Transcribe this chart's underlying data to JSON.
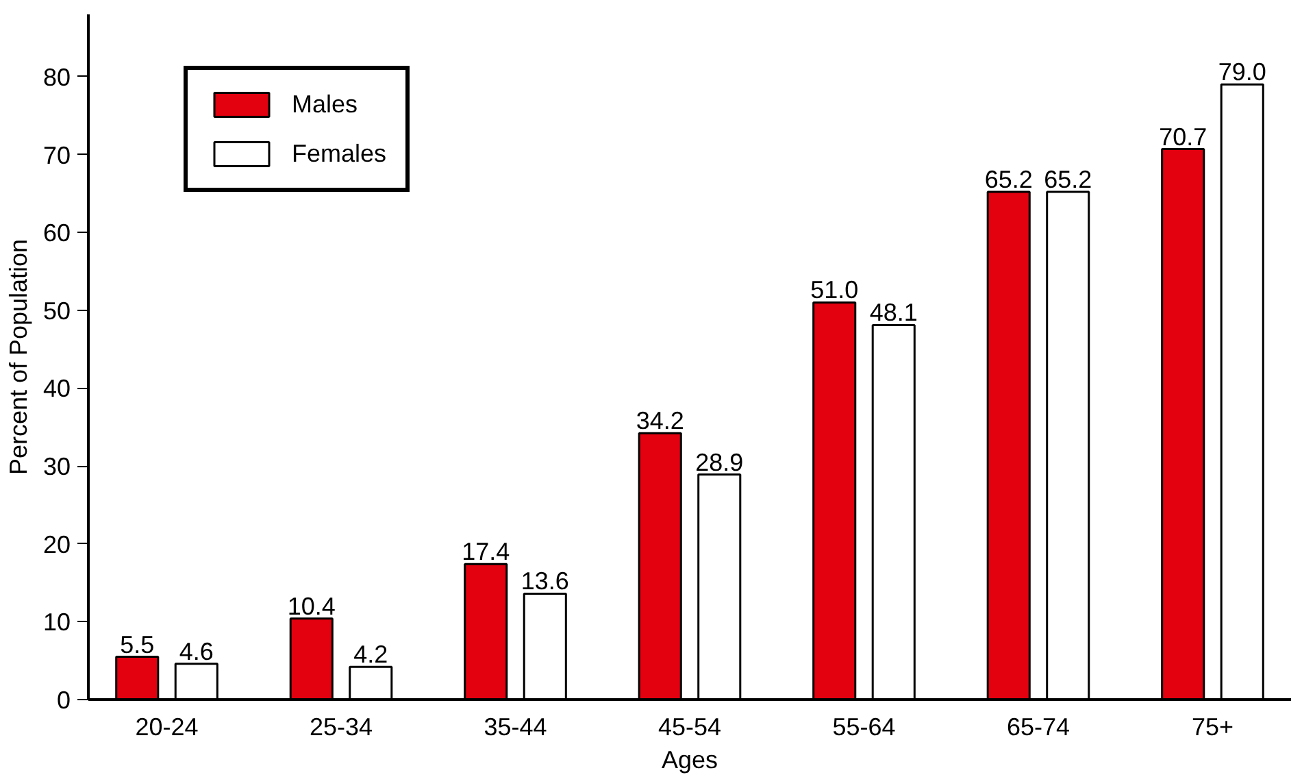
{
  "chart_data": {
    "type": "bar",
    "xlabel": "Ages",
    "ylabel": "Percent of Population",
    "categories": [
      "20-24",
      "25-34",
      "35-44",
      "45-54",
      "55-64",
      "65-74",
      "75+"
    ],
    "series": [
      {
        "name": "Males",
        "color": "#e3000f",
        "values": [
          5.5,
          10.4,
          17.4,
          34.2,
          51.0,
          65.2,
          70.7
        ],
        "value_labels": [
          "5.5",
          "10.4",
          "17.4",
          "34.2",
          "51.0",
          "65.2",
          "70.7"
        ]
      },
      {
        "name": "Females",
        "color": "#ffffff",
        "values": [
          4.6,
          4.2,
          13.6,
          28.9,
          48.1,
          65.2,
          79.0
        ],
        "value_labels": [
          "4.6",
          "4.2",
          "13.6",
          "28.9",
          "48.1",
          "65.2",
          "79.0"
        ]
      }
    ],
    "ylim": [
      0,
      88
    ],
    "yticks": [
      0,
      10,
      20,
      30,
      40,
      50,
      60,
      70,
      80
    ],
    "grid": false,
    "legend": "top left"
  }
}
